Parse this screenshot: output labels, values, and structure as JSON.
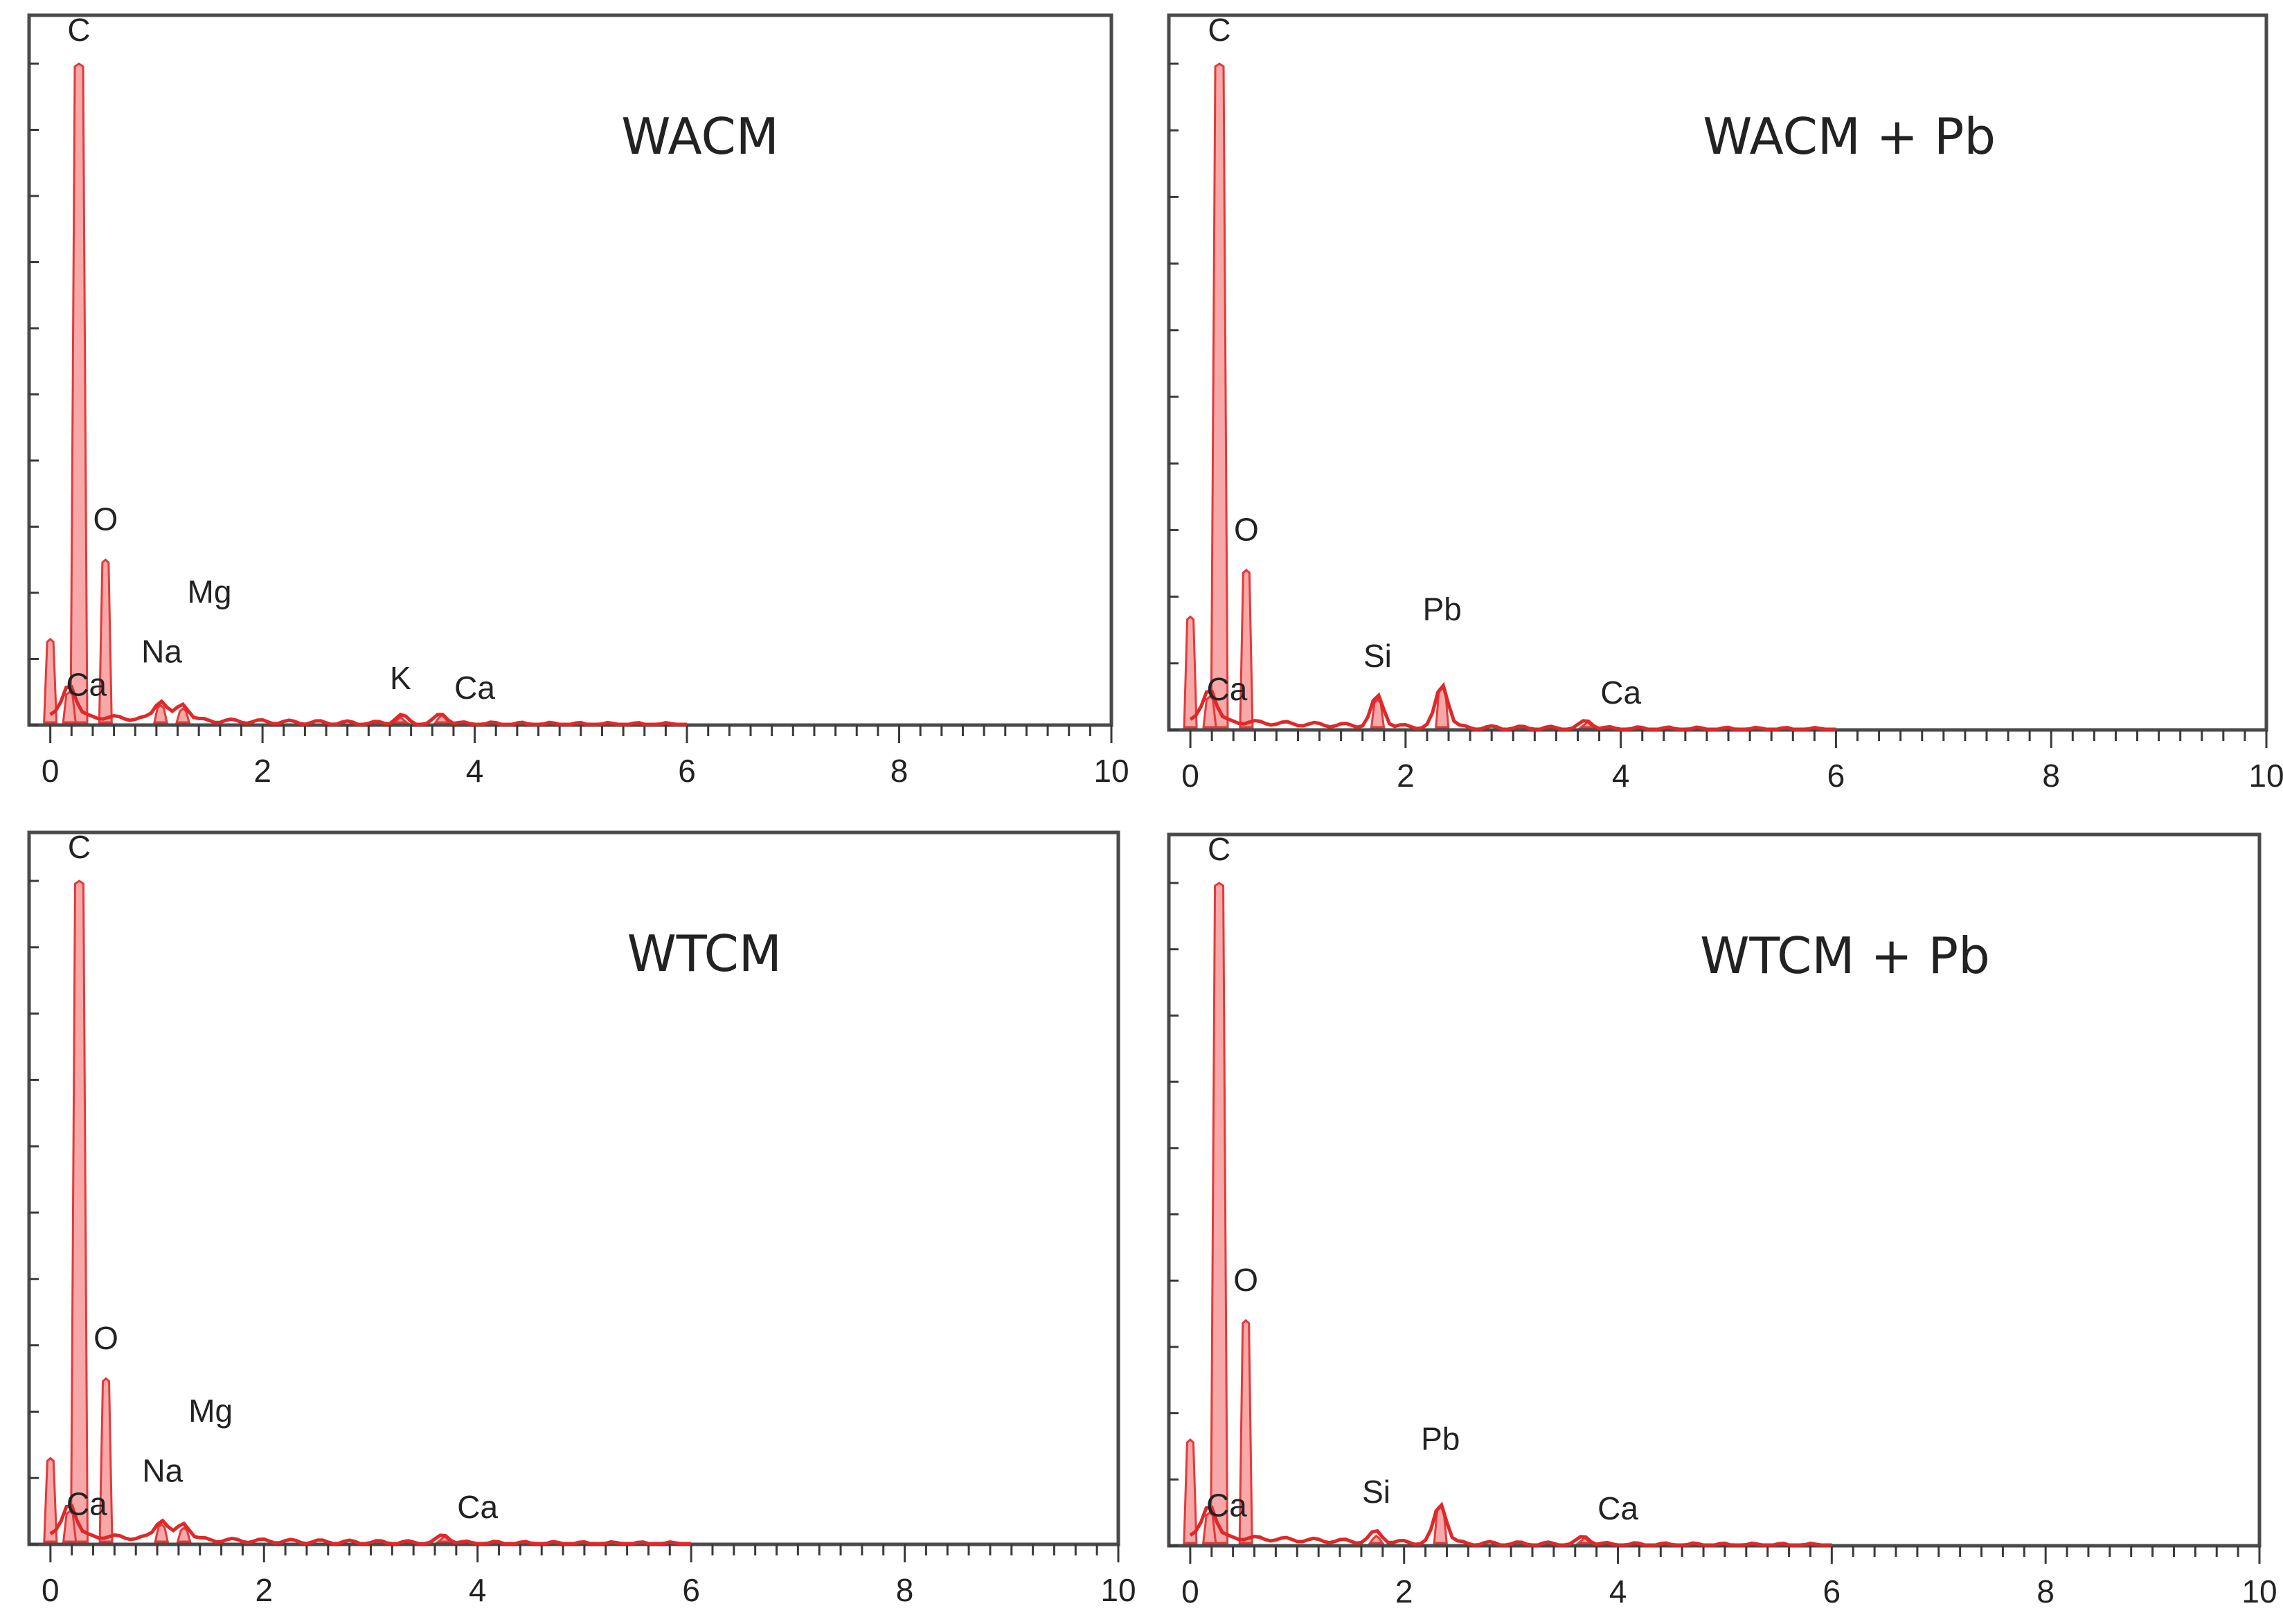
{
  "figure": {
    "background": "#ffffff",
    "trace_color": "#e02828",
    "fill_color": "#f7a8a8"
  },
  "chart_data": [
    {
      "type": "line",
      "title": "WACM",
      "xlabel": "",
      "ylabel": "",
      "xlim": [
        -0.2,
        10
      ],
      "ylim": [
        0,
        1
      ],
      "x_ticks": [
        0,
        2,
        4,
        6,
        8,
        10
      ],
      "x_tick_labels": [
        "0",
        "2",
        "4",
        "6",
        "8",
        "10"
      ],
      "peaks": [
        {
          "x": 0.0,
          "y": 0.13
        },
        {
          "x": 0.27,
          "y": 1.0
        },
        {
          "x": 0.52,
          "y": 0.25
        },
        {
          "x": 0.18,
          "y": 0.05
        },
        {
          "x": 1.04,
          "y": 0.03
        },
        {
          "x": 1.25,
          "y": 0.025
        },
        {
          "x": 3.3,
          "y": 0.012
        },
        {
          "x": 3.69,
          "y": 0.015
        }
      ],
      "annotations": [
        {
          "label": "C",
          "x": 0.27,
          "y": 1.02
        },
        {
          "label": "O",
          "x": 0.52,
          "y": 0.28
        },
        {
          "label": "Mg",
          "x": 1.5,
          "y": 0.17
        },
        {
          "label": "Na",
          "x": 1.05,
          "y": 0.08
        },
        {
          "label": "Ca",
          "x": 0.34,
          "y": 0.03
        },
        {
          "label": "K",
          "x": 3.3,
          "y": 0.04
        },
        {
          "label": "Ca",
          "x": 4.0,
          "y": 0.025
        }
      ]
    },
    {
      "type": "line",
      "title": "WACM + Pb",
      "xlabel": "",
      "ylabel": "",
      "xlim": [
        -0.2,
        10
      ],
      "ylim": [
        0,
        1
      ],
      "x_ticks": [
        0,
        2,
        4,
        6,
        8,
        10
      ],
      "x_tick_labels": [
        "0",
        "2",
        "4",
        "6",
        "8",
        "10"
      ],
      "peaks": [
        {
          "x": 0.0,
          "y": 0.17
        },
        {
          "x": 0.27,
          "y": 1.0
        },
        {
          "x": 0.52,
          "y": 0.24
        },
        {
          "x": 0.18,
          "y": 0.05
        },
        {
          "x": 1.74,
          "y": 0.045
        },
        {
          "x": 2.34,
          "y": 0.065
        },
        {
          "x": 3.69,
          "y": 0.012
        }
      ],
      "annotations": [
        {
          "label": "C",
          "x": 0.27,
          "y": 1.02
        },
        {
          "label": "O",
          "x": 0.52,
          "y": 0.27
        },
        {
          "label": "Si",
          "x": 1.74,
          "y": 0.08
        },
        {
          "label": "Pb",
          "x": 2.34,
          "y": 0.15
        },
        {
          "label": "Ca",
          "x": 0.34,
          "y": 0.03
        },
        {
          "label": "Ca",
          "x": 4.0,
          "y": 0.025
        }
      ]
    },
    {
      "type": "line",
      "title": "WTCM",
      "xlabel": "",
      "ylabel": "",
      "xlim": [
        -0.2,
        10
      ],
      "ylim": [
        0,
        1
      ],
      "x_ticks": [
        0,
        2,
        4,
        6,
        8,
        10
      ],
      "x_tick_labels": [
        "0",
        "2",
        "4",
        "6",
        "8",
        "10"
      ],
      "peaks": [
        {
          "x": 0.0,
          "y": 0.13
        },
        {
          "x": 0.27,
          "y": 1.0
        },
        {
          "x": 0.52,
          "y": 0.25
        },
        {
          "x": 0.18,
          "y": 0.05
        },
        {
          "x": 1.04,
          "y": 0.03
        },
        {
          "x": 1.25,
          "y": 0.025
        },
        {
          "x": 3.69,
          "y": 0.012
        }
      ],
      "annotations": [
        {
          "label": "C",
          "x": 0.27,
          "y": 1.02
        },
        {
          "label": "O",
          "x": 0.52,
          "y": 0.28
        },
        {
          "label": "Mg",
          "x": 1.5,
          "y": 0.17
        },
        {
          "label": "Na",
          "x": 1.05,
          "y": 0.08
        },
        {
          "label": "Ca",
          "x": 0.34,
          "y": 0.03
        },
        {
          "label": "Ca",
          "x": 4.0,
          "y": 0.025
        }
      ]
    },
    {
      "type": "line",
      "title": "WTCM + Pb",
      "xlabel": "",
      "ylabel": "",
      "xlim": [
        -0.2,
        10
      ],
      "ylim": [
        0,
        1
      ],
      "x_ticks": [
        0,
        2,
        4,
        6,
        8,
        10
      ],
      "x_tick_labels": [
        "0",
        "2",
        "4",
        "6",
        "8",
        "10"
      ],
      "peaks": [
        {
          "x": 0.0,
          "y": 0.16
        },
        {
          "x": 0.27,
          "y": 1.0
        },
        {
          "x": 0.52,
          "y": 0.34
        },
        {
          "x": 0.18,
          "y": 0.05
        },
        {
          "x": 1.74,
          "y": 0.015
        },
        {
          "x": 2.34,
          "y": 0.06
        },
        {
          "x": 3.69,
          "y": 0.012
        }
      ],
      "annotations": [
        {
          "label": "C",
          "x": 0.27,
          "y": 1.02
        },
        {
          "label": "O",
          "x": 0.52,
          "y": 0.37
        },
        {
          "label": "Si",
          "x": 1.74,
          "y": 0.05
        },
        {
          "label": "Pb",
          "x": 2.34,
          "y": 0.13
        },
        {
          "label": "Ca",
          "x": 0.34,
          "y": 0.03
        },
        {
          "label": "Ca",
          "x": 4.0,
          "y": 0.025
        }
      ]
    }
  ]
}
